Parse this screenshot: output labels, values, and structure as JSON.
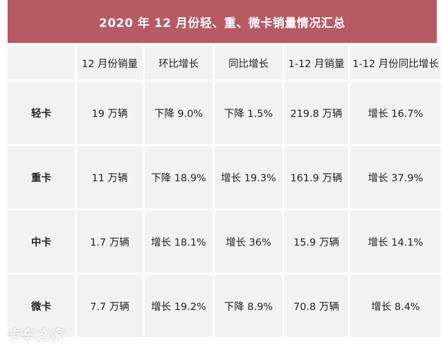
{
  "title": "2020 年 12 月份轻、重、微卡销量情况汇总",
  "columns": [
    "12 月份销量",
    "环比增长",
    "同比增长",
    "1-12 月销量",
    "1-12 月份同比增长"
  ],
  "rows": [
    {
      "name": "轻卡",
      "cells": [
        "19 万辆",
        "下降 9.0%",
        "下降 1.5%",
        "219.8 万辆",
        "增长 16.7%"
      ]
    },
    {
      "name": "重卡",
      "cells": [
        "11 万辆",
        "下降 18.9%",
        "增长 19.3%",
        "161.9 万辆",
        "增长 37.9%"
      ]
    },
    {
      "name": "中卡",
      "cells": [
        "1.7 万辆",
        "增长 18.1%",
        "增长 36%",
        "15.9 万辆",
        "增长 14.1%"
      ]
    },
    {
      "name": "微卡",
      "cells": [
        "7.7 万辆",
        "增长 19.2%",
        "下降 8.9%",
        "70.8 万辆",
        "增长 8.4%"
      ]
    }
  ],
  "watermark": "卡车之家",
  "colors": {
    "header": "#b85a64",
    "cell": "#f2f2f2"
  }
}
